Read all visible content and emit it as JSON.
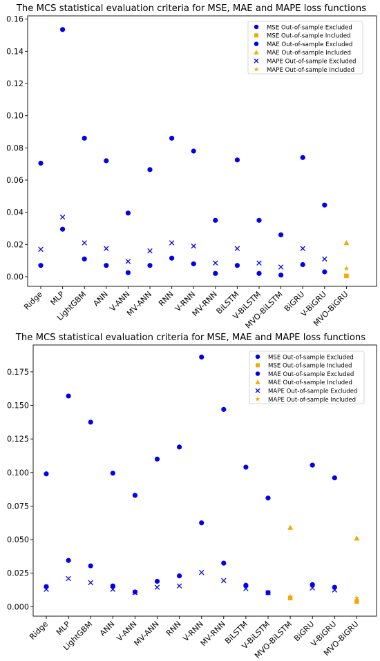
{
  "colors": {
    "excluded": "#0000ee",
    "included": "#f5a800",
    "axis": "#000000",
    "legend_border": "#cccccc"
  },
  "chart_data": [
    {
      "type": "scatter",
      "title": "The MCS statistical evaluation criteria for MSE, MAE and MAPE loss functions",
      "xlabel": "",
      "ylabel": "",
      "categories": [
        "Ridge",
        "MLP",
        "LightGBM",
        "ANN",
        "V-ANN",
        "MV-ANN",
        "RNN",
        "V-RNN",
        "MV-RNN",
        "BiLSTM",
        "V-BiLSTM",
        "MVO-BiLSTM",
        "BiGRU",
        "V-BiGRU",
        "MVO-BiGRU"
      ],
      "ylim": [
        -0.006,
        0.162
      ],
      "yticks": [
        0.0,
        0.02,
        0.04,
        0.06,
        0.08,
        0.1,
        0.12,
        0.14,
        0.16
      ],
      "ytick_labels": [
        "0.00",
        "0.02",
        "0.04",
        "0.06",
        "0.08",
        "0.10",
        "0.12",
        "0.14",
        "0.16"
      ],
      "grid": false,
      "legend_position": "top-right",
      "series": [
        {
          "name": "MSE Out-of-sample Excluded",
          "marker": "circle",
          "color": "excluded",
          "values": [
            0.007,
            0.0295,
            0.011,
            0.007,
            0.0025,
            0.007,
            0.0115,
            0.008,
            0.002,
            0.007,
            0.002,
            0.001,
            0.0075,
            0.003,
            null
          ]
        },
        {
          "name": "MSE Out-of-sample Included",
          "marker": "square",
          "color": "included",
          "values": [
            null,
            null,
            null,
            null,
            null,
            null,
            null,
            null,
            null,
            null,
            null,
            null,
            null,
            null,
            0.0005
          ]
        },
        {
          "name": "MAE Out-of-sample Excluded",
          "marker": "circle",
          "color": "excluded",
          "values": [
            0.0705,
            0.1535,
            0.086,
            0.072,
            0.0395,
            0.0665,
            0.086,
            0.078,
            0.035,
            0.0725,
            0.035,
            0.026,
            0.074,
            0.0445,
            null
          ]
        },
        {
          "name": "MAE Out-of-sample Included",
          "marker": "triangle",
          "color": "included",
          "values": [
            null,
            null,
            null,
            null,
            null,
            null,
            null,
            null,
            null,
            null,
            null,
            null,
            null,
            null,
            0.021
          ]
        },
        {
          "name": "MAPE Out-of-sample Excluded",
          "marker": "x",
          "color": "excluded",
          "values": [
            0.017,
            0.037,
            0.021,
            0.0175,
            0.0095,
            0.016,
            0.021,
            0.019,
            0.0085,
            0.0175,
            0.0085,
            0.006,
            0.0175,
            0.011,
            null
          ]
        },
        {
          "name": "MAPE Out-of-sample Included",
          "marker": "star",
          "color": "included",
          "values": [
            null,
            null,
            null,
            null,
            null,
            null,
            null,
            null,
            null,
            null,
            null,
            null,
            null,
            null,
            0.005
          ]
        }
      ]
    },
    {
      "type": "scatter",
      "title": "The MCS statistical evaluation criteria for MSE, MAE and MAPE loss functions",
      "xlabel": "",
      "ylabel": "",
      "categories": [
        "Ridge",
        "MLP",
        "LightGBM",
        "ANN",
        "V-ANN",
        "MV-ANN",
        "RNN",
        "V-RNN",
        "MV-RNN",
        "BiLSTM",
        "V-BiLSTM",
        "MVO-BiLSTM",
        "BiGRU",
        "V-BiGRU",
        "MVO-BiGRU"
      ],
      "ylim": [
        -0.007,
        0.195
      ],
      "yticks": [
        0.0,
        0.025,
        0.05,
        0.075,
        0.1,
        0.125,
        0.15,
        0.175
      ],
      "ytick_labels": [
        "0.000",
        "0.025",
        "0.050",
        "0.075",
        "0.100",
        "0.125",
        "0.150",
        "0.175"
      ],
      "grid": false,
      "legend_position": "top-right",
      "series": [
        {
          "name": "MSE Out-of-sample Excluded",
          "marker": "circle",
          "color": "excluded",
          "values": [
            0.015,
            0.0345,
            0.0305,
            0.0155,
            0.011,
            0.019,
            0.023,
            0.0625,
            0.0325,
            0.016,
            0.0105,
            null,
            0.0165,
            0.0145,
            null
          ]
        },
        {
          "name": "MSE Out-of-sample Included",
          "marker": "square",
          "color": "included",
          "values": [
            null,
            null,
            null,
            null,
            null,
            null,
            null,
            null,
            null,
            null,
            null,
            0.0065,
            null,
            null,
            0.004
          ]
        },
        {
          "name": "MAE Out-of-sample Excluded",
          "marker": "circle",
          "color": "excluded",
          "values": [
            0.099,
            0.157,
            0.1375,
            0.0995,
            0.083,
            0.11,
            0.119,
            0.186,
            0.147,
            0.104,
            0.081,
            null,
            0.1055,
            0.096,
            null
          ]
        },
        {
          "name": "MAE Out-of-sample Included",
          "marker": "triangle",
          "color": "included",
          "values": [
            null,
            null,
            null,
            null,
            null,
            null,
            null,
            null,
            null,
            null,
            null,
            0.059,
            null,
            null,
            0.051
          ]
        },
        {
          "name": "MAPE Out-of-sample Excluded",
          "marker": "x",
          "color": "excluded",
          "values": [
            0.013,
            0.021,
            0.018,
            0.013,
            0.0105,
            0.0145,
            0.0155,
            0.0255,
            0.0195,
            0.0135,
            0.0105,
            null,
            0.014,
            0.0125,
            null
          ]
        },
        {
          "name": "MAPE Out-of-sample Included",
          "marker": "star",
          "color": "included",
          "values": [
            null,
            null,
            null,
            null,
            null,
            null,
            null,
            null,
            null,
            null,
            null,
            0.0075,
            null,
            null,
            0.0065
          ]
        }
      ]
    }
  ]
}
